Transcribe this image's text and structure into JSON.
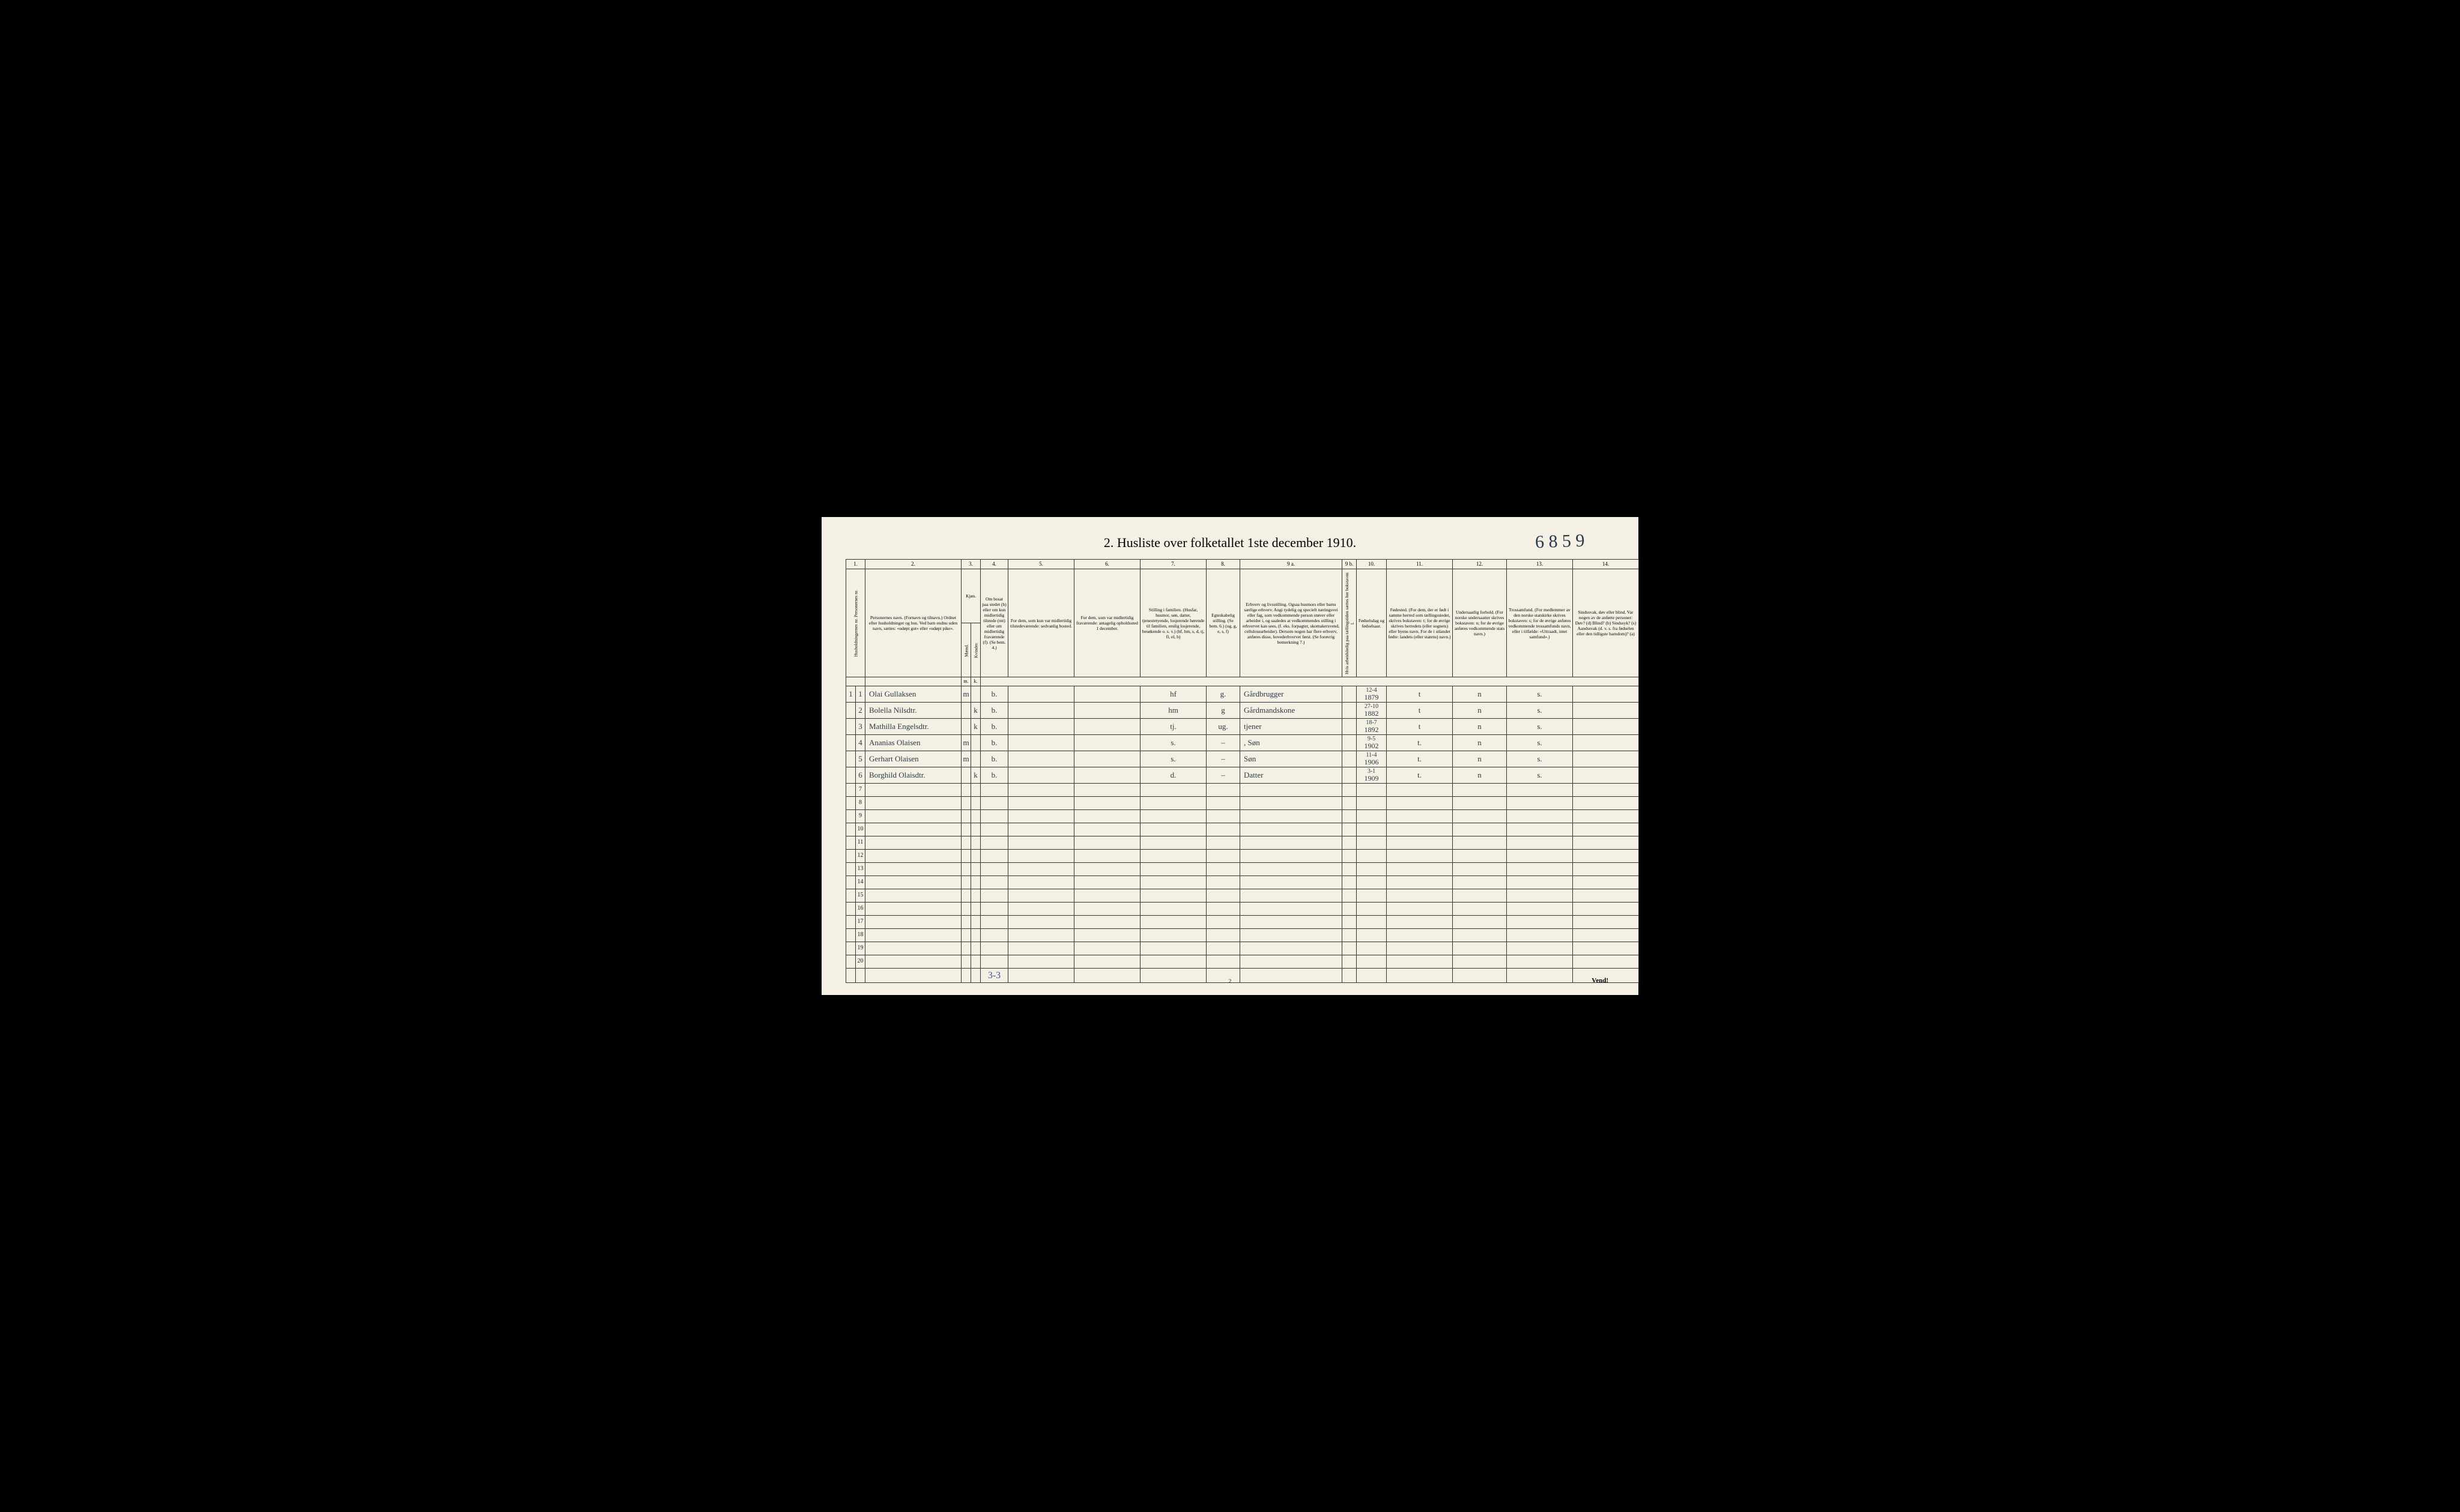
{
  "title": "2.  Husliste over folketallet 1ste december 1910.",
  "handwritten_top": "6 8 5 9",
  "page_num": "2",
  "footer_note": "Vend!",
  "footer_tally": "3-3",
  "colnums": [
    "1.",
    "2.",
    "3.",
    "4.",
    "5.",
    "6.",
    "7.",
    "8.",
    "9 a.",
    "9 b.",
    "10.",
    "11.",
    "12.",
    "13.",
    "14."
  ],
  "headers": {
    "c1": "Husholdningernes nr.\nPersonernes nr.",
    "c2": "Personernes navn.\n(Fornavn og tilnavn.)\nOrdnet efter husholdninger og hus.\nVed barn endnu uden navn, sættes: «udøpt gut» eller «udøpt pike».",
    "c3": "Kjøn.",
    "c3a": "Mænd.",
    "c3b": "Kvinder.",
    "c4": "Om bosat paa stedet (b) eller om kun midlertidig tilstede (mt) eller om midlertidig fraværende (f). (Se bem. 4.)",
    "c5": "For dem, som kun var midlertidig tilstedeværende:  sedvanlig bosted.",
    "c6": "For dem, som var midlertidig fraværende:  antagelig opholdssted 1 december.",
    "c7": "Stilling i familien.\n(Husfar, husmor, søn, datter, tjenestetyende, losjerende hørende til familien, enslig losjerende, besøkende o. s. v.)\n(hf, hm, s, d, tj, fl, el, b)",
    "c8": "Egteskabelig stilling.\n(Se bem. 6.)\n(ug, g, e, s, f)",
    "c9a": "Erhverv og livsstilling.\nOgsaa husmors eller barns særlige erhverv.\nAngi tydelig og specielt næringsvei eller fag, som vedkommende person utøver eller arbeider i, og saaledes at vedkommendes stilling i erhvervet kan sees, (f. eks. forpagter, skomakersvend, cellulosearbeider). Dersom nogen har flere erhverv, anføres disse, hovederhvervet først.\n(Se forøvrig bemerkning 7.)",
    "c9b": "Hvis arbeidsledig paa tællingstiden sættes her bokstaven l.",
    "c10": "Fødselsdag og fødselsaar.",
    "c11": "Fødested.\n(For dem, der er født i samme herred som tællingsstedet, skrives bokstaven: t; for de øvrige skrives herredets (eller sognets) eller byens navn. For de i utlandet fødte: landets (eller statens) navn.)",
    "c12": "Undersaatlig forhold.\n(For norske undersaatter skrives bokstaven: n; for de øvrige anføres vedkommende stats navn.)",
    "c13": "Trossamfund.\n(For medlemmer av den norske statskirke skrives bokstaven: s; for de øvrige anføres vedkommende trossamfunds navn, eller i tilfælde: «Uttraadt, intet samfund».)",
    "c14": "Sindssvak, døv eller blind.\nVar nogen av de anførte personer:\nDøv? (d)\nBlind? (b)\nSindssyk? (s)\nAandssvak (d. v. s. fra fødselen eller den tidligste barndom)? (a)"
  },
  "col_widths": {
    "c1a": 16,
    "c1b": 16,
    "c2": 160,
    "c3a": 16,
    "c3b": 16,
    "c4": 46,
    "c5": 110,
    "c6": 110,
    "c7": 110,
    "c8": 56,
    "c9a": 170,
    "c9b": 24,
    "c10": 50,
    "c11": 110,
    "c12": 90,
    "c13": 110,
    "c14": 110
  },
  "rows": [
    {
      "h": "1",
      "p": "1",
      "name": "Olai Gullaksen",
      "m": "m",
      "k": "",
      "b": "b.",
      "c5": "",
      "c6": "",
      "c7": "hf",
      "c8": "g.",
      "c9a": "Gårdbrugger",
      "c9b": "",
      "c10": "12-4\n1879",
      "c11": "t",
      "c12": "n",
      "c13": "s.",
      "c14": ""
    },
    {
      "h": "",
      "p": "2",
      "name": "Bolella Nilsdtr.",
      "m": "",
      "k": "k",
      "b": "b.",
      "c5": "",
      "c6": "",
      "c7": "hm",
      "c8": "g",
      "c9a": "Gårdmandskone",
      "c9b": "",
      "c10": "27-10\n1882",
      "c11": "t",
      "c12": "n",
      "c13": "s.",
      "c14": ""
    },
    {
      "h": "",
      "p": "3",
      "name": "Mathilla Engelsdtr.",
      "m": "",
      "k": "k",
      "b": "b.",
      "c5": "",
      "c6": "",
      "c7": "tj.",
      "c8": "ug.",
      "c9a": "tjener",
      "c9b": "",
      "c10": "18-7\n1892",
      "c11": "t",
      "c12": "n",
      "c13": "s.",
      "c14": ""
    },
    {
      "h": "",
      "p": "4",
      "name": "Ananias Olaisen",
      "m": "m",
      "k": "",
      "b": "b.",
      "c5": "",
      "c6": "",
      "c7": "s.",
      "c8": "–",
      "c9a": ", Søn",
      "c9b": "",
      "c10": "9-5\n1902",
      "c11": "t.",
      "c12": "n",
      "c13": "s.",
      "c14": ""
    },
    {
      "h": "",
      "p": "5",
      "name": "Gerhart Olaisen",
      "m": "m",
      "k": "",
      "b": "b.",
      "c5": "",
      "c6": "",
      "c7": "s.",
      "c8": "–",
      "c9a": "Søn",
      "c9b": "",
      "c10": "11-4\n1906",
      "c11": "t.",
      "c12": "n",
      "c13": "s.",
      "c14": ""
    },
    {
      "h": "",
      "p": "6",
      "name": "Borghild Olaisdtr.",
      "m": "",
      "k": "k",
      "b": "b.",
      "c5": "",
      "c6": "",
      "c7": "d.",
      "c8": "–",
      "c9a": "Datter",
      "c9b": "",
      "c10": "3-1\n1909",
      "c11": "t.",
      "c12": "n",
      "c13": "s.",
      "c14": ""
    }
  ],
  "empty_rows": [
    "7",
    "8",
    "9",
    "10",
    "11",
    "12",
    "13",
    "14",
    "15",
    "16",
    "17",
    "18",
    "19",
    "20"
  ],
  "colors": {
    "paper": "#f4f0e4",
    "ink_print": "#1a1a1a",
    "ink_hand": "#2a3a4a",
    "ink_blue": "#4050a0",
    "border": "#333333",
    "background": "#000000"
  },
  "typography": {
    "title_fontsize_pt": 18,
    "header_fontsize_pt": 7,
    "body_fontsize_pt": 12,
    "handwritten_font": "cursive",
    "print_font": "Times New Roman"
  }
}
